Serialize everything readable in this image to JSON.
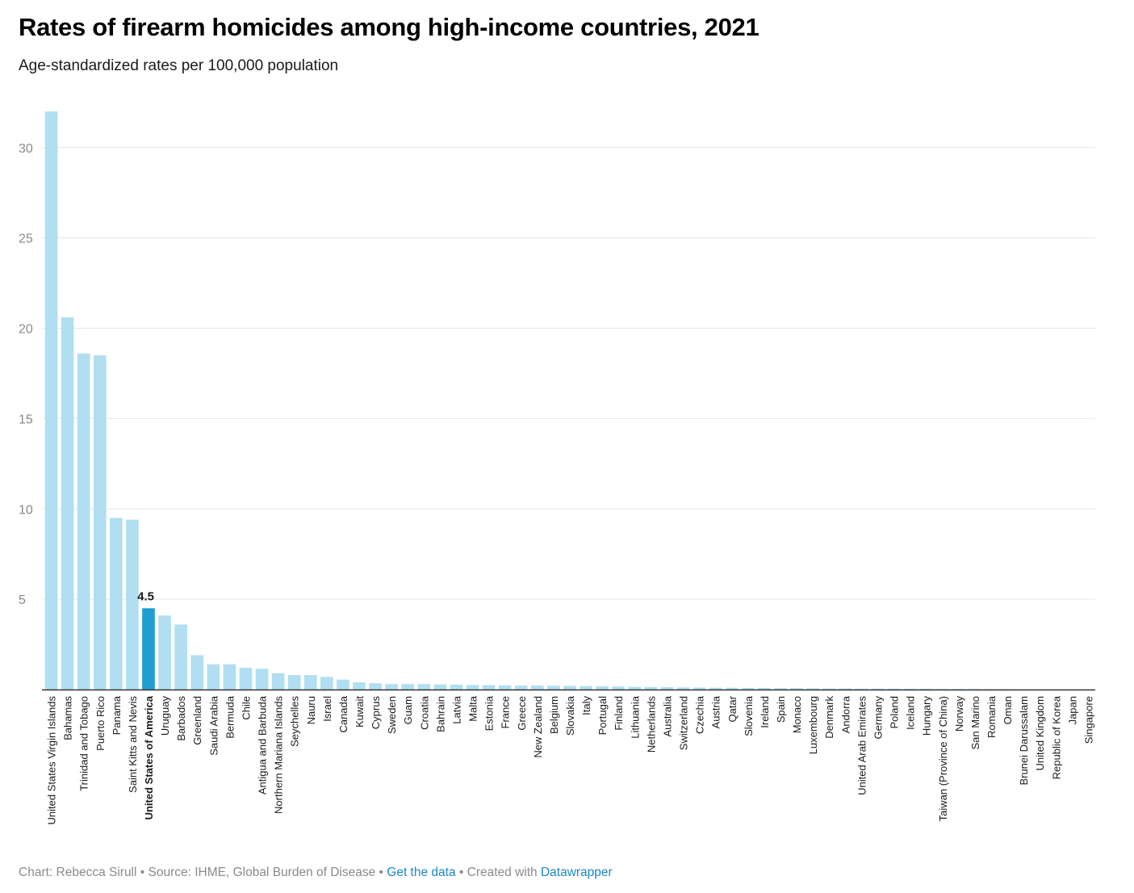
{
  "title": "Rates of firearm homicides among high-income countries, 2021",
  "subtitle": "Age-standardized rates per 100,000 population",
  "colors": {
    "bar": "#b1def1",
    "highlight": "#1f9ed1",
    "grid": "#e6e6e6",
    "axis": "#333333",
    "footer_text": "#8a8a8a",
    "link": "#1a88c4"
  },
  "footer": {
    "credit": "Chart: Rebecca Sirull",
    "sep1": " • ",
    "source": "Source: IHME, Global Burden of Disease",
    "sep2": " • ",
    "get_data": "Get the data",
    "sep3": " • ",
    "created_with": "Created with ",
    "datawrapper": "Datawrapper"
  },
  "chart_data": {
    "type": "bar",
    "title": "Rates of firearm homicides among high-income countries, 2021",
    "subtitle": "Age-standardized rates per 100,000 population",
    "xlabel": "",
    "ylabel": "",
    "ylim": [
      0,
      32
    ],
    "yticks": [
      5,
      10,
      15,
      20,
      25,
      30
    ],
    "grid": true,
    "highlight": {
      "category": "United States of America",
      "label": "4.5"
    },
    "categories": [
      "United States Virgin Islands",
      "Bahamas",
      "Trinidad and Tobago",
      "Puerto Rico",
      "Panama",
      "Saint Kitts and Nevis",
      "United States of America",
      "Uruguay",
      "Barbados",
      "Greenland",
      "Saudi Arabia",
      "Bermuda",
      "Chile",
      "Antigua and Barbuda",
      "Northern Mariana Islands",
      "Seychelles",
      "Nauru",
      "Israel",
      "Canada",
      "Kuwait",
      "Cyprus",
      "Sweden",
      "Guam",
      "Croatia",
      "Bahrain",
      "Latvia",
      "Malta",
      "Estonia",
      "France",
      "Greece",
      "New Zealand",
      "Belgium",
      "Slovakia",
      "Italy",
      "Portugal",
      "Finland",
      "Lithuania",
      "Netherlands",
      "Australia",
      "Switzerland",
      "Czechia",
      "Austria",
      "Qatar",
      "Slovenia",
      "Ireland",
      "Spain",
      "Monaco",
      "Luxembourg",
      "Denmark",
      "Andorra",
      "United Arab Emirates",
      "Germany",
      "Poland",
      "Iceland",
      "Hungary",
      "Taiwan (Province of China)",
      "Norway",
      "San Marino",
      "Romania",
      "Oman",
      "Brunei Darussalam",
      "United Kingdom",
      "Republic of Korea",
      "Japan",
      "Singapore"
    ],
    "values": [
      32.0,
      20.6,
      18.6,
      18.5,
      9.5,
      9.4,
      4.5,
      4.1,
      3.6,
      1.9,
      1.4,
      1.4,
      1.2,
      1.15,
      0.9,
      0.8,
      0.8,
      0.7,
      0.55,
      0.4,
      0.35,
      0.3,
      0.3,
      0.3,
      0.28,
      0.27,
      0.25,
      0.24,
      0.23,
      0.22,
      0.22,
      0.21,
      0.2,
      0.19,
      0.18,
      0.17,
      0.15,
      0.14,
      0.13,
      0.12,
      0.11,
      0.1,
      0.1,
      0.09,
      0.09,
      0.08,
      0.08,
      0.07,
      0.06,
      0.06,
      0.05,
      0.05,
      0.05,
      0.04,
      0.04,
      0.03,
      0.03,
      0.03,
      0.02,
      0.02,
      0.01,
      0.01,
      0.01,
      0.01,
      0.0
    ]
  }
}
